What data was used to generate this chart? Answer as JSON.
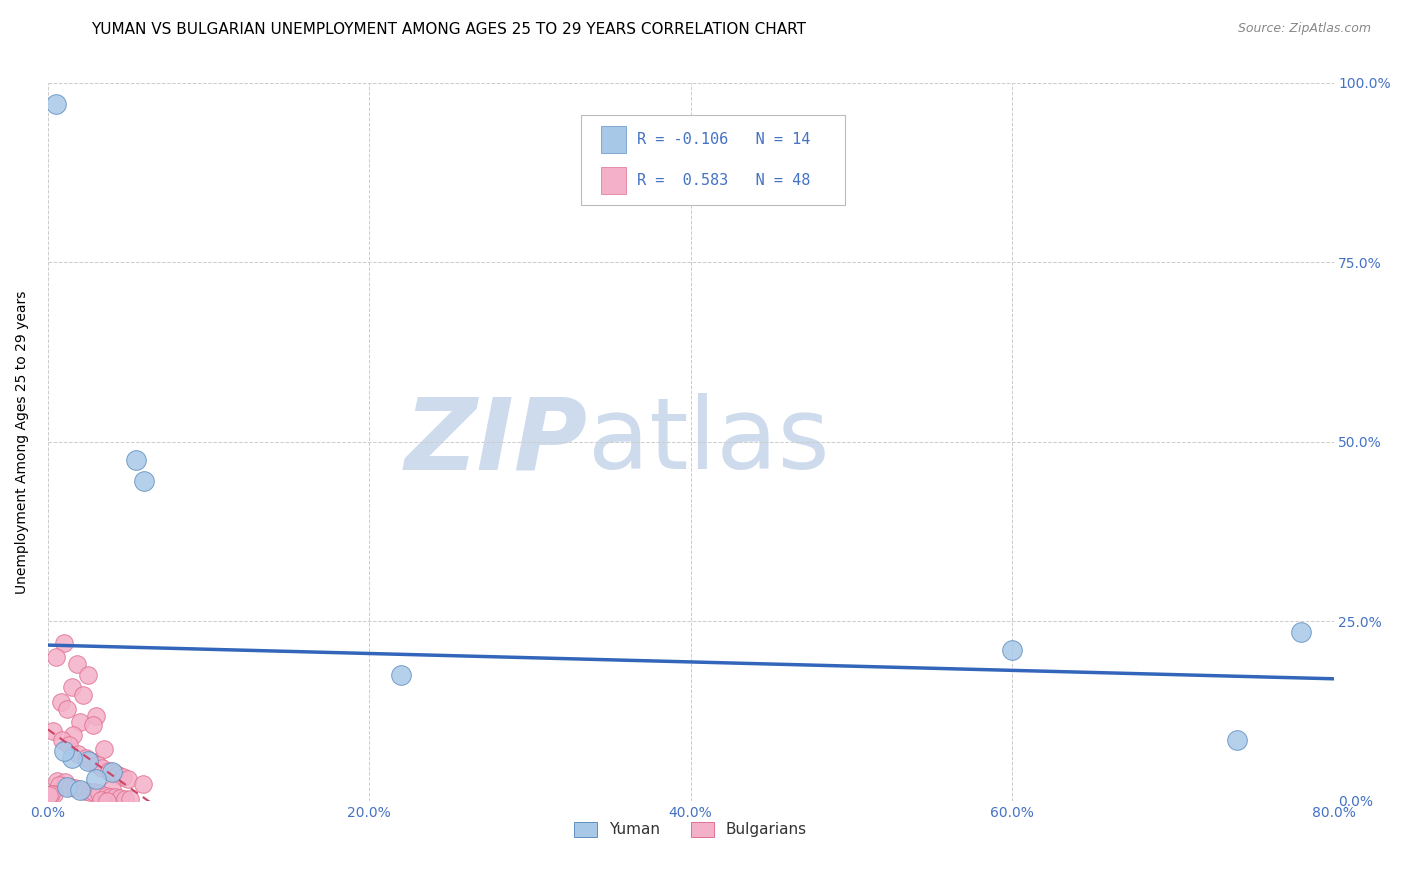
{
  "title": "YUMAN VS BULGARIAN UNEMPLOYMENT AMONG AGES 25 TO 29 YEARS CORRELATION CHART",
  "source": "Source: ZipAtlas.com",
  "ylabel": "Unemployment Among Ages 25 to 29 years",
  "xlim": [
    0.0,
    0.8
  ],
  "ylim": [
    0.0,
    1.0
  ],
  "xticks": [
    0.0,
    0.2,
    0.4,
    0.6,
    0.8
  ],
  "xticklabels": [
    "0.0%",
    "20.0%",
    "40.0%",
    "60.0%",
    "80.0%"
  ],
  "yticks": [
    0.0,
    0.25,
    0.5,
    0.75,
    1.0
  ],
  "yticklabels_right": [
    "0.0%",
    "25.0%",
    "50.0%",
    "75.0%",
    "100.0%"
  ],
  "grid_color": "#cccccc",
  "background_color": "#ffffff",
  "watermark_zip": "ZIP",
  "watermark_atlas": "atlas",
  "watermark_color_zip": "#c8d8ec",
  "watermark_color_atlas": "#c8d8ec",
  "yuman_color": "#a8c8e8",
  "bulgarian_color": "#f4b0c8",
  "yuman_edge_color": "#6090c0",
  "bulgarian_edge_color": "#e07090",
  "trend_yuman_color": "#3366bb",
  "trend_bulgarian_color": "#cc4466",
  "R_yuman": -0.106,
  "N_yuman": 14,
  "R_bulgarian": 0.583,
  "N_bulgarian": 48,
  "yuman_points": [
    [
      0.005,
      0.97
    ],
    [
      0.055,
      0.475
    ],
    [
      0.06,
      0.445
    ],
    [
      0.22,
      0.175
    ],
    [
      0.6,
      0.21
    ],
    [
      0.78,
      0.235
    ],
    [
      0.74,
      0.085
    ],
    [
      0.025,
      0.055
    ],
    [
      0.04,
      0.04
    ],
    [
      0.03,
      0.03
    ],
    [
      0.015,
      0.06
    ],
    [
      0.01,
      0.07
    ],
    [
      0.012,
      0.02
    ],
    [
      0.02,
      0.015
    ]
  ],
  "bulgarian_points": [
    [
      0.01,
      0.22
    ],
    [
      0.005,
      0.2
    ],
    [
      0.018,
      0.19
    ],
    [
      0.025,
      0.175
    ],
    [
      0.015,
      0.158
    ],
    [
      0.022,
      0.148
    ],
    [
      0.008,
      0.138
    ],
    [
      0.012,
      0.128
    ],
    [
      0.03,
      0.118
    ],
    [
      0.02,
      0.11
    ],
    [
      0.028,
      0.105
    ],
    [
      0.003,
      0.098
    ],
    [
      0.016,
      0.092
    ],
    [
      0.009,
      0.085
    ],
    [
      0.013,
      0.078
    ],
    [
      0.035,
      0.072
    ],
    [
      0.019,
      0.065
    ],
    [
      0.024,
      0.06
    ],
    [
      0.027,
      0.055
    ],
    [
      0.031,
      0.05
    ],
    [
      0.034,
      0.046
    ],
    [
      0.038,
      0.042
    ],
    [
      0.041,
      0.039
    ],
    [
      0.044,
      0.036
    ],
    [
      0.047,
      0.033
    ],
    [
      0.05,
      0.03
    ],
    [
      0.006,
      0.028
    ],
    [
      0.011,
      0.026
    ],
    [
      0.059,
      0.024
    ],
    [
      0.007,
      0.022
    ],
    [
      0.014,
      0.02
    ],
    [
      0.017,
      0.018
    ],
    [
      0.04,
      0.016
    ],
    [
      0.023,
      0.014
    ],
    [
      0.026,
      0.013
    ],
    [
      0.029,
      0.012
    ],
    [
      0.032,
      0.011
    ],
    [
      0.004,
      0.01
    ],
    [
      0.002,
      0.009
    ],
    [
      0.001,
      0.008
    ],
    [
      0.036,
      0.007
    ],
    [
      0.039,
      0.006
    ],
    [
      0.042,
      0.005
    ],
    [
      0.045,
      0.004
    ],
    [
      0.048,
      0.003
    ],
    [
      0.051,
      0.002
    ],
    [
      0.033,
      0.001
    ],
    [
      0.037,
      0.0
    ]
  ],
  "title_fontsize": 11,
  "source_fontsize": 9,
  "axis_label_fontsize": 10,
  "tick_fontsize": 10,
  "tick_color": "#4472c4",
  "stats_box_facecolor": "#ffffff",
  "stats_box_edgecolor": "#bbbbbb",
  "legend_label_color": "#333333"
}
